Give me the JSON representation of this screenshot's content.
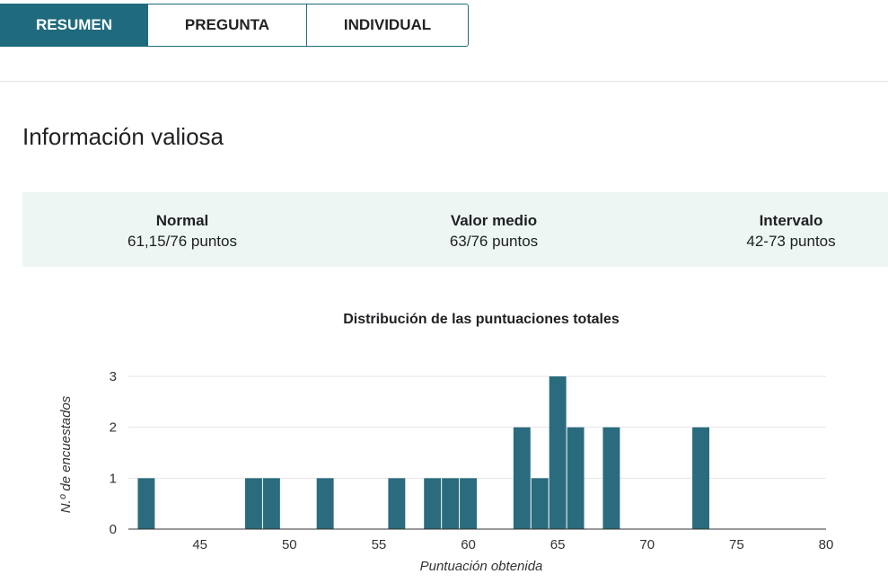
{
  "tabs": [
    {
      "label": "RESUMEN",
      "active": true
    },
    {
      "label": "PREGUNTA",
      "active": false
    },
    {
      "label": "INDIVIDUAL",
      "active": false
    }
  ],
  "section_title": "Información valiosa",
  "stats": {
    "normal": {
      "label": "Normal",
      "value": "61,15/76 puntos"
    },
    "mean": {
      "label": "Valor medio",
      "value": "63/76 puntos"
    },
    "range": {
      "label": "Intervalo",
      "value": "42-73 puntos"
    }
  },
  "colors": {
    "accent": "#1f6a7d",
    "stats_bg": "#eef6f3",
    "bar": "#2b6b7e"
  },
  "chart_data": {
    "type": "bar",
    "title": "Distribución de las puntuaciones totales",
    "xlabel": "Puntuación obtenida",
    "ylabel": "N.º de encuestados",
    "xlim": [
      41,
      80
    ],
    "ylim": [
      0,
      3
    ],
    "x_ticks": [
      45,
      50,
      55,
      60,
      65,
      70,
      75,
      80
    ],
    "y_ticks": [
      0,
      1,
      2,
      3
    ],
    "x": [
      42,
      48,
      49,
      52,
      56,
      58,
      59,
      60,
      63,
      64,
      65,
      66,
      68,
      73
    ],
    "values": [
      1,
      1,
      1,
      1,
      1,
      1,
      1,
      1,
      2,
      1,
      3,
      2,
      2,
      2
    ],
    "grid": true
  }
}
